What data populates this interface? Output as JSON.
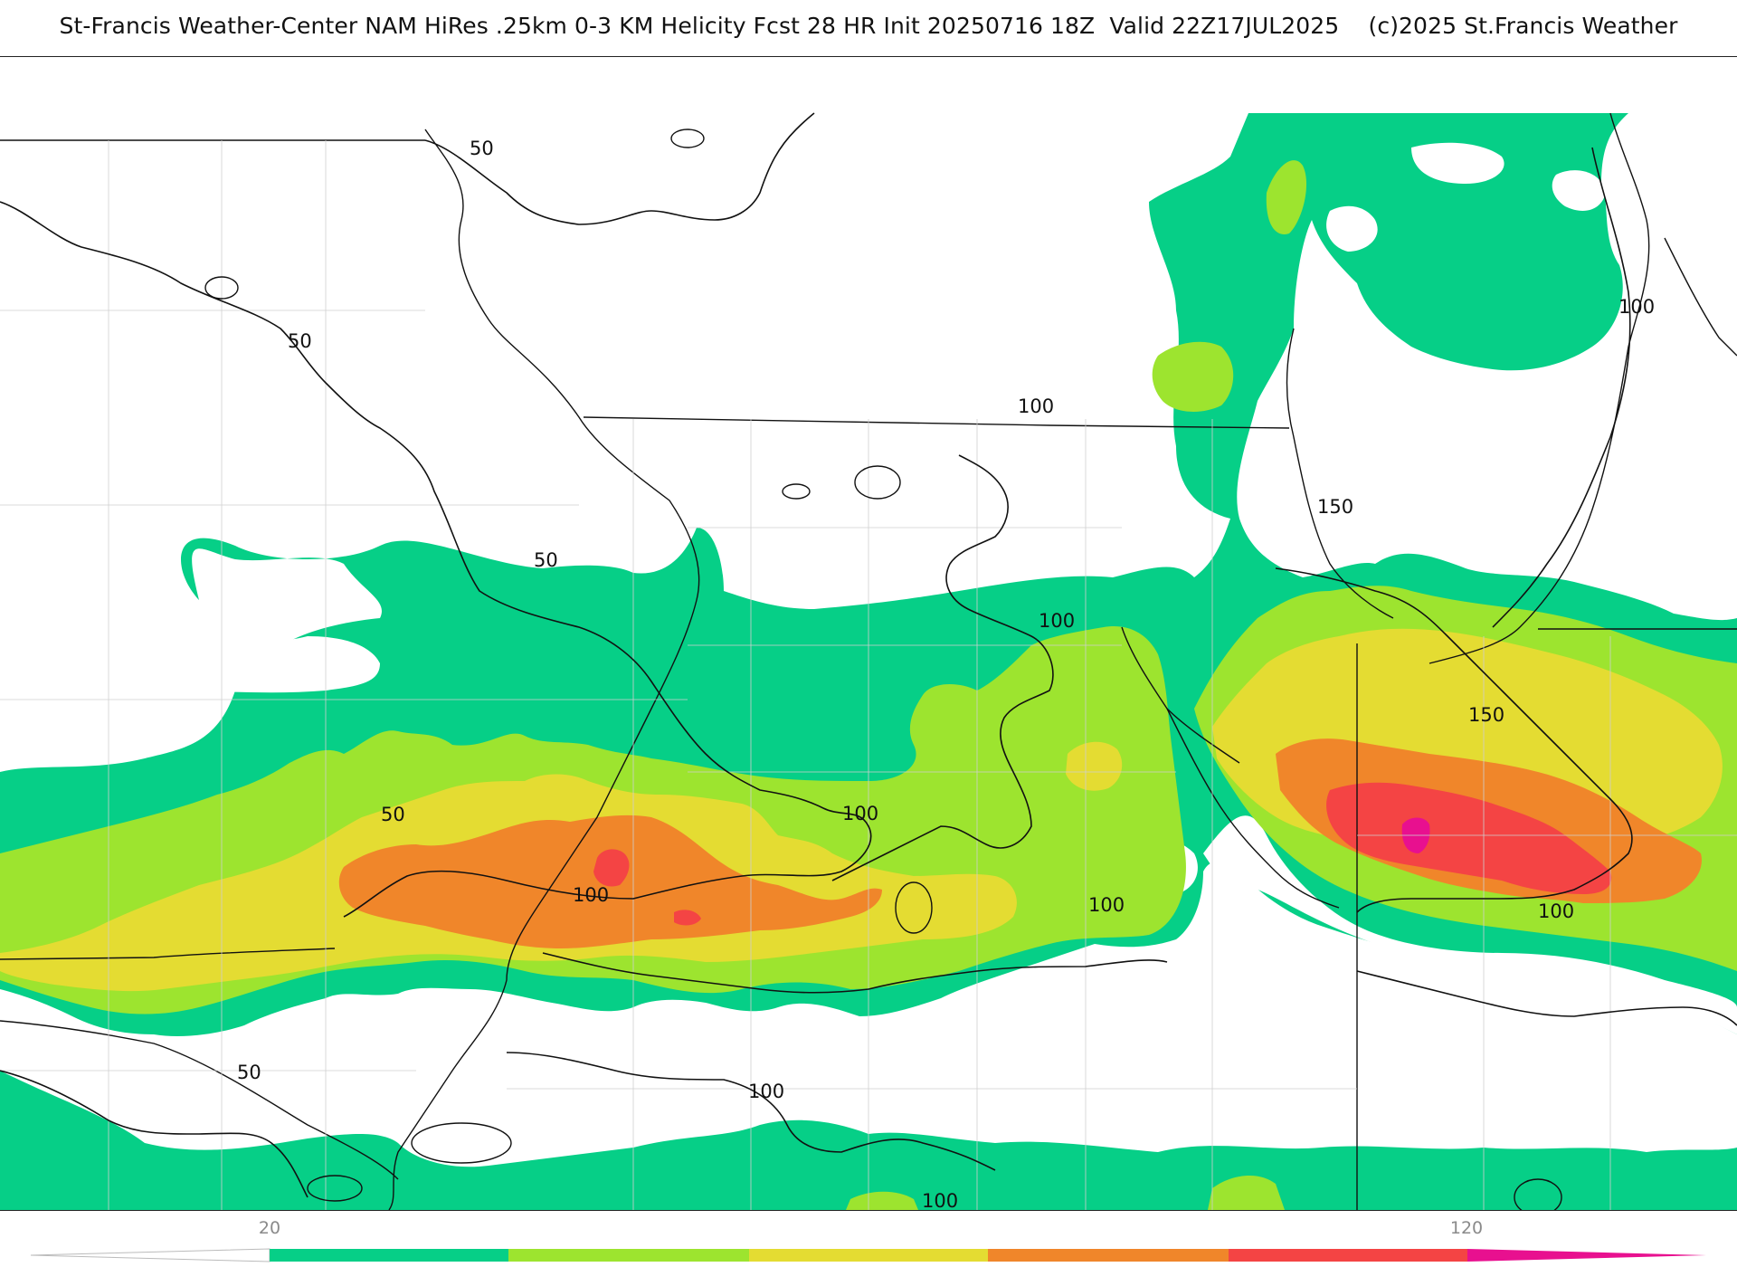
{
  "title": "St-Francis Weather-Center NAM HiRes .25km 0-3 KM Helicity Fcst 28 HR Init 20250716 18Z  Valid 22Z17JUL2025    (c)2025 St.Francis Weather",
  "product": "0-3 KM Helicity",
  "contour_labels": [
    {
      "id": "c50-a",
      "text": "50"
    },
    {
      "id": "c50-b",
      "text": "50"
    },
    {
      "id": "c50-c",
      "text": "50"
    },
    {
      "id": "c50-d",
      "text": "50"
    },
    {
      "id": "c50-e",
      "text": "50"
    },
    {
      "id": "c100-a",
      "text": "100"
    },
    {
      "id": "c100-b",
      "text": "100"
    },
    {
      "id": "c100-c",
      "text": "100"
    },
    {
      "id": "c100-d",
      "text": "100"
    },
    {
      "id": "c100-e",
      "text": "100"
    },
    {
      "id": "c100-f",
      "text": "100"
    },
    {
      "id": "c100-g",
      "text": "100"
    },
    {
      "id": "c100-h",
      "text": "100"
    },
    {
      "id": "c100-i",
      "text": "100"
    },
    {
      "id": "c150-a",
      "text": "150"
    },
    {
      "id": "c150-b",
      "text": "150"
    }
  ],
  "colorbar": {
    "tick_labels": [
      "20",
      "120"
    ],
    "colors": {
      "band1": "#06cf87",
      "band2": "#9de42f",
      "band3": "#e4dc32",
      "band4": "#f0862a",
      "band5": "#f44444",
      "band6": "#e8108f"
    }
  }
}
